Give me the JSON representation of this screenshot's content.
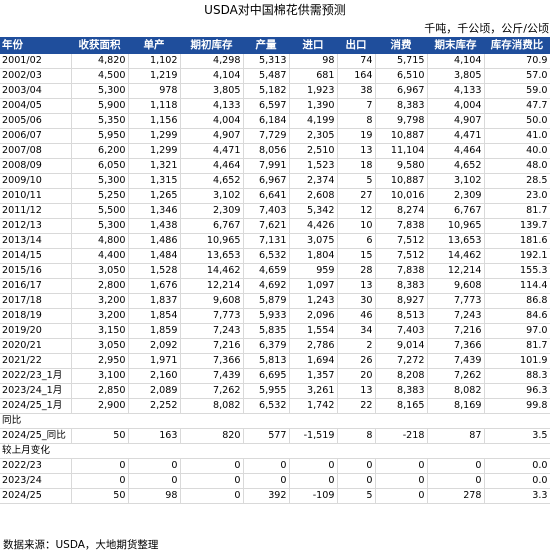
{
  "title": "USDA对中国棉花供需预测",
  "units": "千吨，千公顷，公斤/公顷",
  "columns": [
    "年份",
    "收获面积",
    "单产",
    "期初库存",
    "产量",
    "进口",
    "出口",
    "消费",
    "期末库存",
    "库存消费比"
  ],
  "rows": [
    [
      "2001/02",
      "4,820",
      "1,102",
      "4,298",
      "5,313",
      "98",
      "74",
      "5,715",
      "4,104",
      "70.9"
    ],
    [
      "2002/03",
      "4,500",
      "1,219",
      "4,104",
      "5,487",
      "681",
      "164",
      "6,510",
      "3,805",
      "57.0"
    ],
    [
      "2003/04",
      "5,300",
      "978",
      "3,805",
      "5,182",
      "1,923",
      "38",
      "6,967",
      "4,133",
      "59.0"
    ],
    [
      "2004/05",
      "5,900",
      "1,118",
      "4,133",
      "6,597",
      "1,390",
      "7",
      "8,383",
      "4,004",
      "47.7"
    ],
    [
      "2005/06",
      "5,350",
      "1,156",
      "4,004",
      "6,184",
      "4,199",
      "8",
      "9,798",
      "4,907",
      "50.0"
    ],
    [
      "2006/07",
      "5,950",
      "1,299",
      "4,907",
      "7,729",
      "2,305",
      "19",
      "10,887",
      "4,471",
      "41.0"
    ],
    [
      "2007/08",
      "6,200",
      "1,299",
      "4,471",
      "8,056",
      "2,510",
      "13",
      "11,104",
      "4,464",
      "40.0"
    ],
    [
      "2008/09",
      "6,050",
      "1,321",
      "4,464",
      "7,991",
      "1,523",
      "18",
      "9,580",
      "4,652",
      "48.0"
    ],
    [
      "2009/10",
      "5,300",
      "1,315",
      "4,652",
      "6,967",
      "2,374",
      "5",
      "10,887",
      "3,102",
      "28.5"
    ],
    [
      "2010/11",
      "5,250",
      "1,265",
      "3,102",
      "6,641",
      "2,608",
      "27",
      "10,016",
      "2,309",
      "23.0"
    ],
    [
      "2011/12",
      "5,500",
      "1,346",
      "2,309",
      "7,403",
      "5,342",
      "12",
      "8,274",
      "6,767",
      "81.7"
    ],
    [
      "2012/13",
      "5,300",
      "1,438",
      "6,767",
      "7,621",
      "4,426",
      "10",
      "7,838",
      "10,965",
      "139.7"
    ],
    [
      "2013/14",
      "4,800",
      "1,486",
      "10,965",
      "7,131",
      "3,075",
      "6",
      "7,512",
      "13,653",
      "181.6"
    ],
    [
      "2014/15",
      "4,400",
      "1,484",
      "13,653",
      "6,532",
      "1,804",
      "15",
      "7,512",
      "14,462",
      "192.1"
    ],
    [
      "2015/16",
      "3,050",
      "1,528",
      "14,462",
      "4,659",
      "959",
      "28",
      "7,838",
      "12,214",
      "155.3"
    ],
    [
      "2016/17",
      "2,800",
      "1,676",
      "12,214",
      "4,692",
      "1,097",
      "13",
      "8,383",
      "9,608",
      "114.4"
    ],
    [
      "2017/18",
      "3,200",
      "1,837",
      "9,608",
      "5,879",
      "1,243",
      "30",
      "8,927",
      "7,773",
      "86.8"
    ],
    [
      "2018/19",
      "3,200",
      "1,854",
      "7,773",
      "5,933",
      "2,096",
      "46",
      "8,513",
      "7,243",
      "84.6"
    ],
    [
      "2019/20",
      "3,150",
      "1,859",
      "7,243",
      "5,835",
      "1,554",
      "34",
      "7,403",
      "7,216",
      "97.0"
    ],
    [
      "2020/21",
      "3,050",
      "2,092",
      "7,216",
      "6,379",
      "2,786",
      "2",
      "9,014",
      "7,366",
      "81.7"
    ],
    [
      "2021/22",
      "2,950",
      "1,971",
      "7,366",
      "5,813",
      "1,694",
      "26",
      "7,272",
      "7,439",
      "101.9"
    ],
    [
      "2022/23_1月",
      "3,100",
      "2,160",
      "7,439",
      "6,695",
      "1,357",
      "20",
      "8,208",
      "7,262",
      "88.3"
    ],
    [
      "2023/24_1月",
      "2,850",
      "2,089",
      "7,262",
      "5,955",
      "3,261",
      "13",
      "8,383",
      "8,082",
      "96.3"
    ],
    [
      "2024/25_1月",
      "2,900",
      "2,252",
      "8,082",
      "6,532",
      "1,742",
      "22",
      "8,165",
      "8,169",
      "99.8"
    ]
  ],
  "yoy_label": "同比",
  "yoy_rows": [
    [
      "2024/25_同比",
      "50",
      "163",
      "820",
      "577",
      "-1,519",
      "8",
      "-218",
      "87",
      "3.5"
    ]
  ],
  "mom_label": "较上月变化",
  "mom_rows": [
    [
      "2022/23",
      "0",
      "0",
      "0",
      "0",
      "0",
      "0",
      "0",
      "0",
      "0.0"
    ],
    [
      "2023/24",
      "0",
      "0",
      "0",
      "0",
      "0",
      "0",
      "0",
      "0",
      "0.0"
    ],
    [
      "2024/25",
      "50",
      "98",
      "0",
      "392",
      "-109",
      "5",
      "0",
      "278",
      "3.3"
    ]
  ],
  "source": "数据来源：USDA，大地期货整理",
  "colors": {
    "header_bg": "#1f4e9c",
    "header_text": "#ffffff",
    "grid": "#d9d9d9"
  }
}
